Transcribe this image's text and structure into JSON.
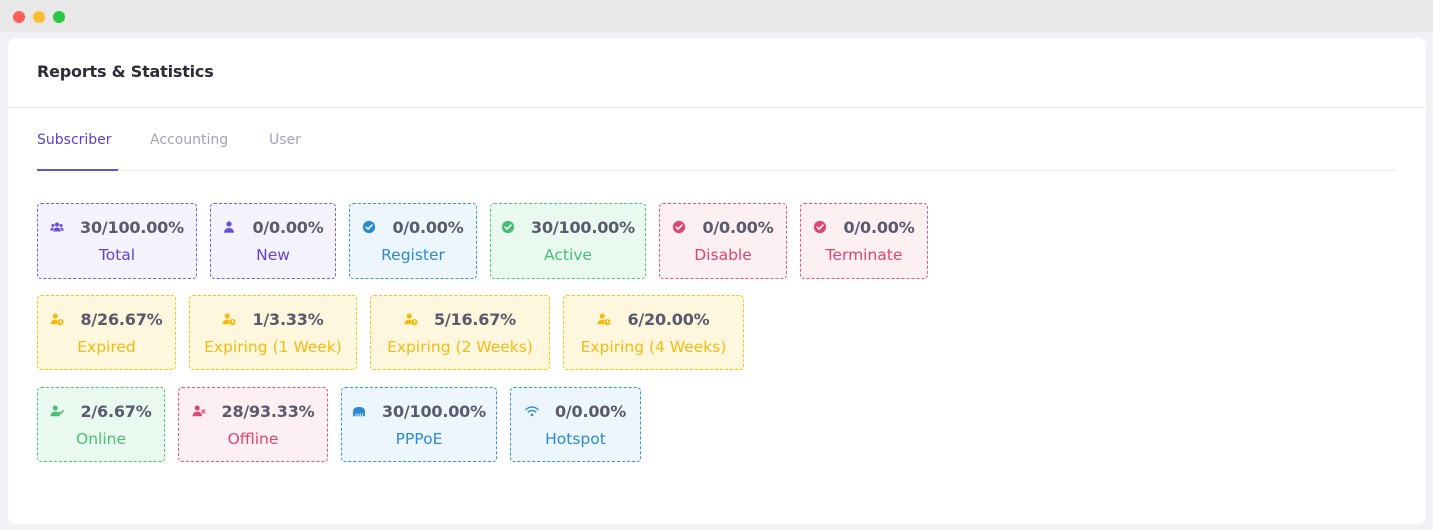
{
  "window": {
    "controls": [
      "close",
      "minimize",
      "maximize"
    ]
  },
  "card": {
    "title": "Reports & Statistics"
  },
  "tabs": [
    {
      "label": "Subscriber",
      "active": true
    },
    {
      "label": "Accounting",
      "active": false
    },
    {
      "label": "User",
      "active": false
    }
  ],
  "colors": {
    "purple": "#6242d4",
    "blue": "#2a8ad2",
    "green": "#47c074",
    "pink": "#e04471",
    "yellow": "#f2bb12"
  },
  "stats": [
    {
      "value": "30/100.00%",
      "label": "Total",
      "icon": "users-group-icon",
      "color": "purple"
    },
    {
      "value": "0/0.00%",
      "label": "New",
      "icon": "user-icon",
      "color": "purple"
    },
    {
      "value": "0/0.00%",
      "label": "Register",
      "icon": "check-circle-icon",
      "color": "blue"
    },
    {
      "value": "30/100.00%",
      "label": "Active",
      "icon": "check-circle-icon",
      "color": "green"
    },
    {
      "value": "0/0.00%",
      "label": "Disable",
      "icon": "check-circle-icon",
      "color": "pink"
    },
    {
      "value": "0/0.00%",
      "label": "Terminate",
      "icon": "check-circle-icon",
      "color": "pink"
    },
    {
      "value": "8/26.67%",
      "label": "Expired",
      "icon": "user-clock-icon",
      "color": "yellow"
    },
    {
      "value": "1/3.33%",
      "label": "Expiring (1 Week)",
      "icon": "user-clock-icon",
      "color": "yellow"
    },
    {
      "value": "5/16.67%",
      "label": "Expiring (2 Weeks)",
      "icon": "user-clock-icon",
      "color": "yellow"
    },
    {
      "value": "6/20.00%",
      "label": "Expiring (4 Weeks)",
      "icon": "user-clock-icon",
      "color": "yellow"
    },
    {
      "value": "2/6.67%",
      "label": "Online",
      "icon": "user-check-icon",
      "color": "green"
    },
    {
      "value": "28/93.33%",
      "label": "Offline",
      "icon": "user-times-icon",
      "color": "pink"
    },
    {
      "value": "30/100.00%",
      "label": "PPPoE",
      "icon": "ethernet-icon",
      "color": "blue"
    },
    {
      "value": "0/0.00%",
      "label": "Hotspot",
      "icon": "wifi-icon",
      "color": "blue"
    }
  ]
}
